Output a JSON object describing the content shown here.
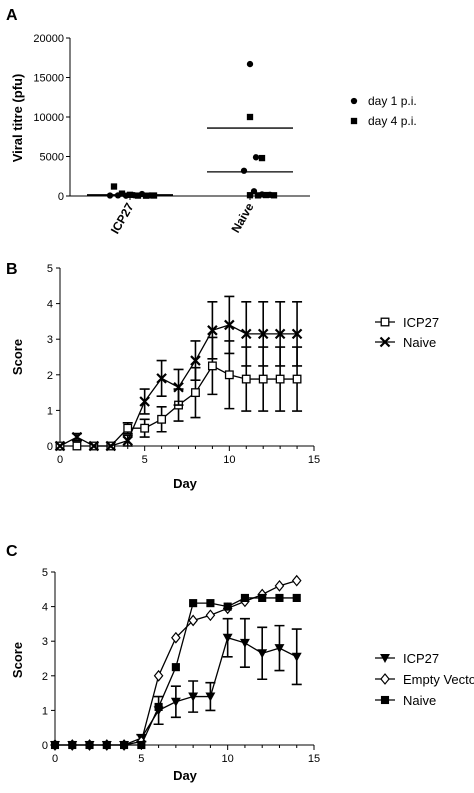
{
  "chart_data": [
    {
      "panel": "A",
      "type": "scatter",
      "ylabel": "Viral titre (pfu)",
      "categories": [
        "ICP27",
        "Naive"
      ],
      "ylim": [
        0,
        20000
      ],
      "yticks": [
        "0",
        "5000",
        "10000",
        "15000",
        "20000"
      ],
      "legend": "right",
      "series": [
        {
          "name": "day 1 p.i.",
          "marker": "circle",
          "points": [
            {
              "category": "ICP27",
              "y": 60
            },
            {
              "category": "ICP27",
              "y": 80
            },
            {
              "category": "ICP27",
              "y": 40
            },
            {
              "category": "ICP27",
              "y": 100
            },
            {
              "category": "ICP27",
              "y": 250
            },
            {
              "category": "ICP27",
              "y": 70
            },
            {
              "category": "Naive",
              "y": 16700
            },
            {
              "category": "Naive",
              "y": 4900
            },
            {
              "category": "Naive",
              "y": 3200
            },
            {
              "category": "Naive",
              "y": 600
            },
            {
              "category": "Naive",
              "y": 200
            },
            {
              "category": "Naive",
              "y": 150
            }
          ]
        },
        {
          "name": "day 4 p.i.",
          "marker": "square",
          "points": [
            {
              "category": "ICP27",
              "y": 1200
            },
            {
              "category": "ICP27",
              "y": 300
            },
            {
              "category": "ICP27",
              "y": 150
            },
            {
              "category": "ICP27",
              "y": 50
            },
            {
              "category": "ICP27",
              "y": 40
            },
            {
              "category": "ICP27",
              "y": 60
            },
            {
              "category": "Naive",
              "y": 10000
            },
            {
              "category": "Naive",
              "y": 4800
            },
            {
              "category": "Naive",
              "y": 100
            },
            {
              "category": "Naive",
              "y": 80
            },
            {
              "category": "Naive",
              "y": 120
            },
            {
              "category": "Naive",
              "y": 90
            }
          ]
        }
      ],
      "mean_lines": [
        {
          "category": "ICP27",
          "y": 150
        },
        {
          "category": "Naive",
          "y": 8600
        },
        {
          "category": "Naive",
          "y": 3050
        }
      ]
    },
    {
      "panel": "B",
      "type": "line",
      "xlabel": "Day",
      "ylabel": "Score",
      "xlim": [
        0,
        15
      ],
      "ylim": [
        0,
        5
      ],
      "xticks": [
        "0",
        "5",
        "10",
        "15"
      ],
      "yticks": [
        "0",
        "1",
        "2",
        "3",
        "4",
        "5"
      ],
      "legend": "right",
      "series": [
        {
          "name": "ICP27",
          "marker": "open-square",
          "x": [
            0,
            1,
            2,
            3,
            4,
            5,
            6,
            7,
            8,
            9,
            10,
            11,
            12,
            13,
            14
          ],
          "y": [
            0,
            0,
            0,
            0,
            0.5,
            0.5,
            0.75,
            1.15,
            1.5,
            2.25,
            2.0,
            1.88,
            1.88,
            1.88,
            1.88
          ],
          "err": [
            0,
            0,
            0,
            0,
            0.15,
            0.25,
            0.35,
            0.45,
            0.7,
            0.8,
            0.95,
            0.9,
            0.9,
            0.9,
            0.9
          ]
        },
        {
          "name": "Naive",
          "marker": "x",
          "x": [
            0,
            1,
            2,
            3,
            4,
            5,
            6,
            7,
            8,
            9,
            10,
            11,
            12,
            13,
            14
          ],
          "y": [
            0,
            0.25,
            0,
            0,
            0.15,
            1.25,
            1.9,
            1.65,
            2.4,
            3.25,
            3.4,
            3.15,
            3.15,
            3.15,
            3.15
          ],
          "err": [
            0,
            0.1,
            0,
            0,
            0.15,
            0.35,
            0.5,
            0.5,
            0.55,
            0.8,
            0.8,
            0.9,
            0.9,
            0.9,
            0.9
          ]
        }
      ]
    },
    {
      "panel": "C",
      "type": "line",
      "xlabel": "Day",
      "ylabel": "Score",
      "xlim": [
        0,
        15
      ],
      "ylim": [
        0,
        5
      ],
      "xticks": [
        "0",
        "5",
        "10",
        "15"
      ],
      "yticks": [
        "0",
        "1",
        "2",
        "3",
        "4",
        "5"
      ],
      "legend": "right",
      "series": [
        {
          "name": "ICP27",
          "marker": "triangle-down",
          "x": [
            0,
            1,
            2,
            3,
            4,
            5,
            6,
            7,
            8,
            9,
            10,
            11,
            12,
            13,
            14
          ],
          "y": [
            0,
            0,
            0,
            0,
            0,
            0.2,
            1.0,
            1.25,
            1.4,
            1.4,
            3.1,
            2.95,
            2.65,
            2.8,
            2.55
          ],
          "err": [
            0,
            0,
            0,
            0,
            0,
            0.1,
            0.4,
            0.45,
            0.45,
            0.4,
            0.55,
            0.7,
            0.75,
            0.65,
            0.8
          ]
        },
        {
          "name": "Empty Vector",
          "marker": "open-diamond",
          "x": [
            0,
            1,
            2,
            3,
            4,
            5,
            6,
            7,
            8,
            9,
            10,
            11,
            12,
            13,
            14
          ],
          "y": [
            0,
            0,
            0,
            0,
            0,
            0.1,
            2.0,
            3.1,
            3.6,
            3.75,
            3.95,
            4.15,
            4.35,
            4.6,
            4.75
          ],
          "err": []
        },
        {
          "name": "Naive",
          "marker": "square",
          "x": [
            0,
            1,
            2,
            3,
            4,
            5,
            6,
            7,
            8,
            9,
            10,
            11,
            12,
            13,
            14
          ],
          "y": [
            0,
            0,
            0,
            0,
            0,
            0,
            1.1,
            2.25,
            4.1,
            4.1,
            4.0,
            4.25,
            4.25,
            4.25,
            4.25
          ],
          "err": []
        }
      ]
    }
  ]
}
